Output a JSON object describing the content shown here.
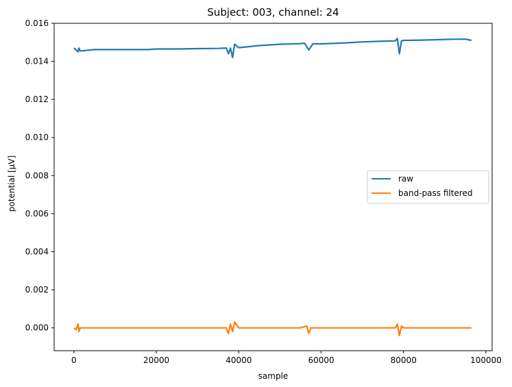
{
  "chart_data": {
    "type": "line",
    "title": "Subject: 003, channel: 24",
    "xlabel": "sample",
    "ylabel": "potential [µV]",
    "xlim": [
      -4800,
      101500
    ],
    "ylim": [
      -0.0012,
      0.016
    ],
    "x_ticks": [
      0,
      20000,
      40000,
      60000,
      80000,
      100000
    ],
    "x_tick_labels": [
      "0",
      "20000",
      "40000",
      "60000",
      "80000",
      "100000"
    ],
    "y_ticks": [
      0.0,
      0.002,
      0.004,
      0.006,
      0.008,
      0.01,
      0.012,
      0.014,
      0.016
    ],
    "y_tick_labels": [
      "0.000",
      "0.002",
      "0.004",
      "0.006",
      "0.008",
      "0.010",
      "0.012",
      "0.014",
      "0.016"
    ],
    "grid": false,
    "legend": {
      "placement": "center-right"
    },
    "series": [
      {
        "name": "raw",
        "color": "#1f77b4",
        "x": [
          0,
          500,
          1000,
          1200,
          1500,
          2000,
          3000,
          5000,
          8000,
          10000,
          15000,
          18000,
          20000,
          25000,
          30000,
          35000,
          36000,
          37000,
          37500,
          38000,
          38500,
          39000,
          40000,
          45000,
          50000,
          55000,
          56000,
          57000,
          58000,
          60000,
          65000,
          70000,
          75000,
          78000,
          78500,
          79000,
          79500,
          80000,
          85000,
          90000,
          92000,
          95000,
          96500
        ],
        "y": [
          0.0147,
          0.0146,
          0.0145,
          0.0147,
          0.01455,
          0.01455,
          0.01458,
          0.01462,
          0.01462,
          0.01462,
          0.01462,
          0.01462,
          0.01465,
          0.01465,
          0.01467,
          0.01468,
          0.01469,
          0.0147,
          0.0144,
          0.0147,
          0.0142,
          0.0149,
          0.01472,
          0.01483,
          0.0149,
          0.01493,
          0.01495,
          0.0146,
          0.01492,
          0.01492,
          0.01496,
          0.01502,
          0.01506,
          0.01508,
          0.0152,
          0.0144,
          0.01508,
          0.0151,
          0.01512,
          0.01515,
          0.01516,
          0.01517,
          0.0151
        ]
      },
      {
        "name": "band-pass filtered",
        "color": "#ff7f0e",
        "x": [
          0,
          500,
          1000,
          1200,
          1500,
          2000,
          5000,
          10000,
          15000,
          20000,
          25000,
          30000,
          35000,
          37000,
          37500,
          38000,
          38500,
          39000,
          40000,
          45000,
          50000,
          55000,
          56500,
          57000,
          57500,
          60000,
          65000,
          70000,
          75000,
          78000,
          78500,
          79000,
          79500,
          80000,
          85000,
          90000,
          95000,
          96500
        ],
        "y": [
          0.0,
          -0.0001,
          0.0002,
          -0.0002,
          0.0,
          0.0,
          0.0,
          0.0,
          0.0,
          0.0,
          0.0,
          0.0,
          0.0,
          0.0,
          -0.0003,
          0.0002,
          -0.0002,
          0.0003,
          0.0,
          0.0,
          0.0,
          0.0,
          0.0001,
          -0.0003,
          0.0,
          0.0,
          0.0,
          0.0,
          0.0,
          0.0,
          0.0002,
          -0.0004,
          0.0001,
          0.0,
          0.0,
          0.0,
          0.0,
          0.0
        ]
      }
    ]
  }
}
